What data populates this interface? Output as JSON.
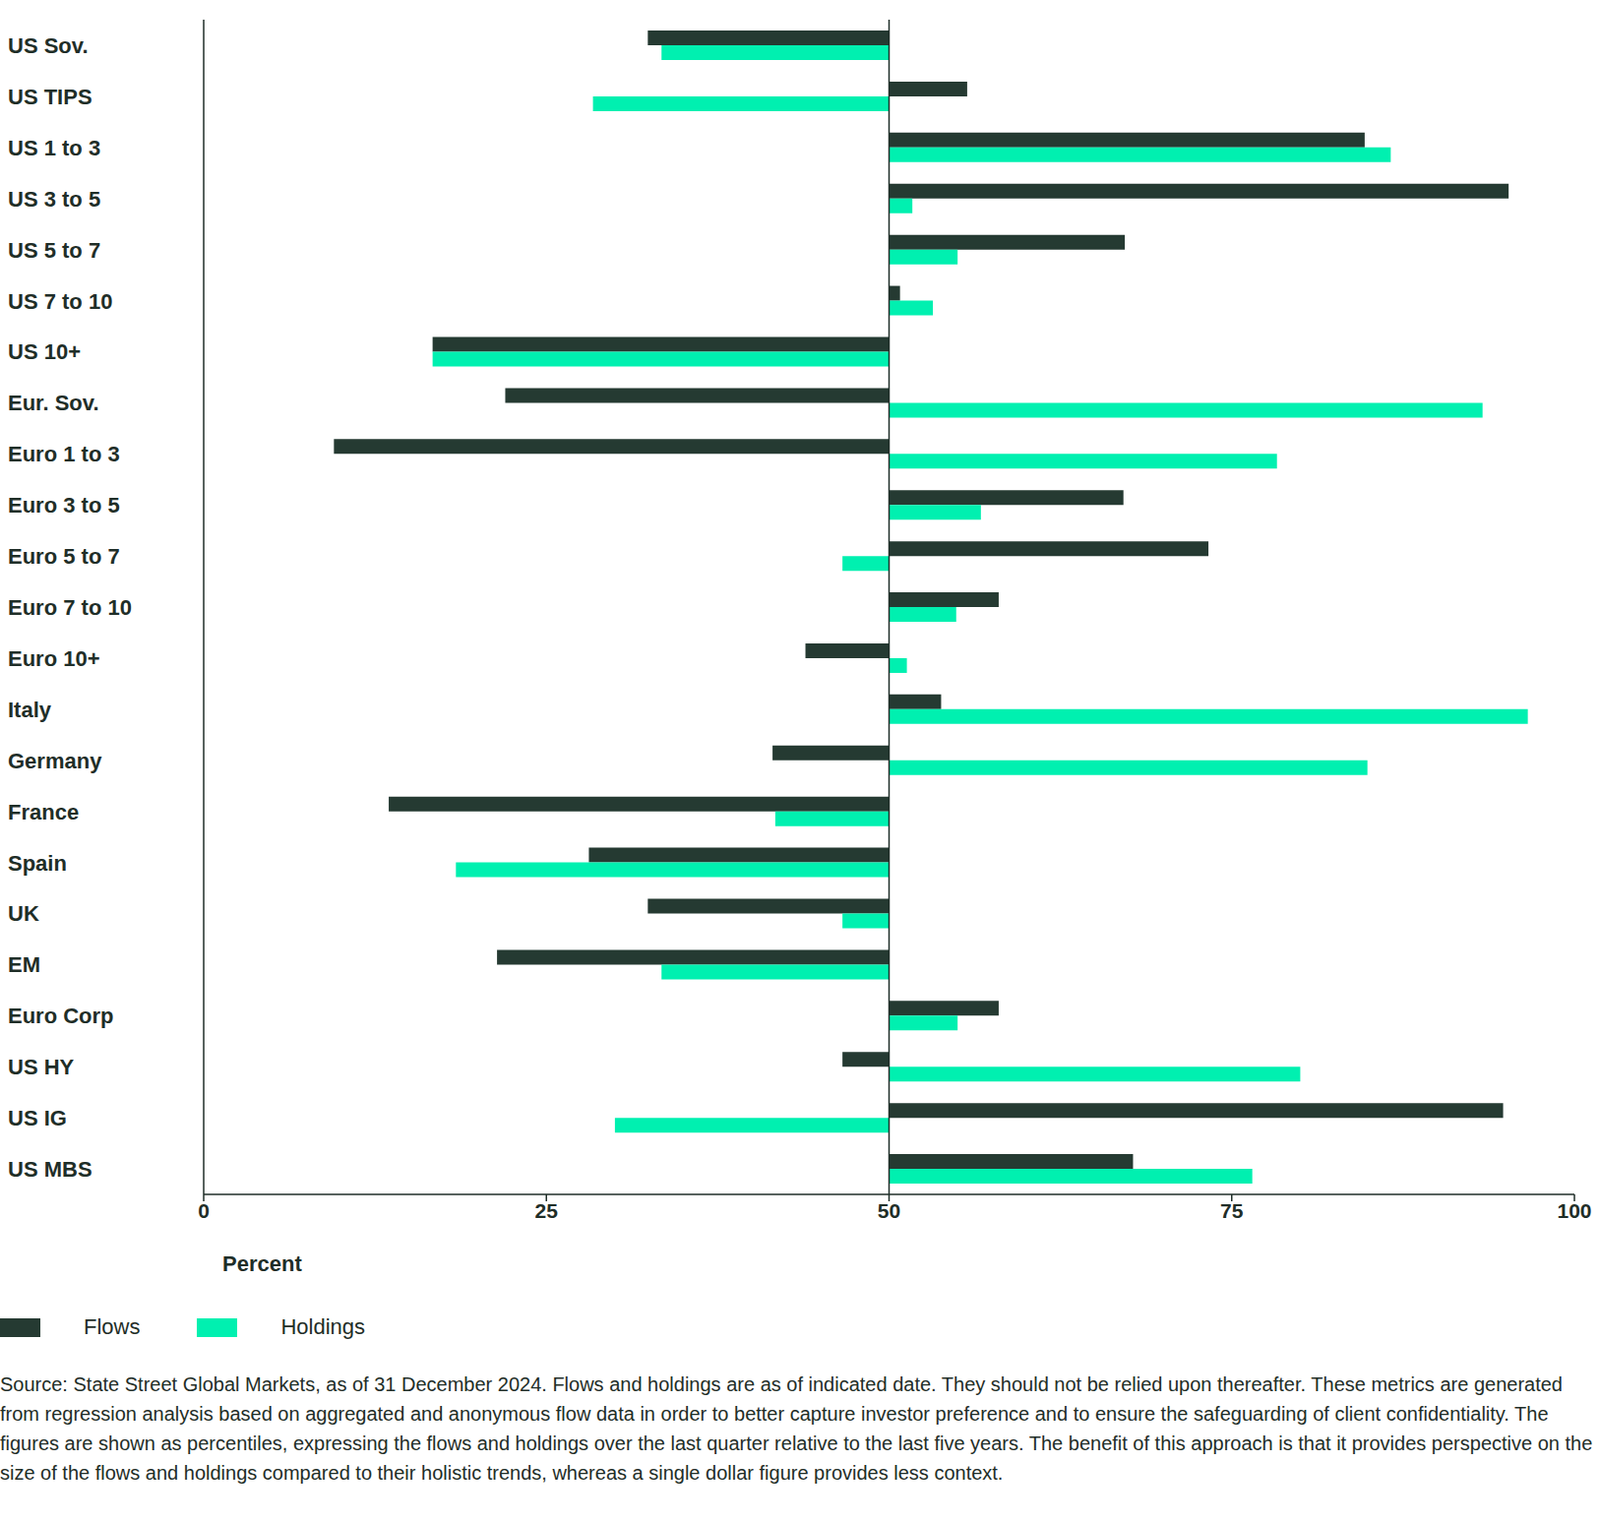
{
  "chart_data": {
    "type": "bar",
    "orientation": "horizontal",
    "x_label": "Percent",
    "xlim": [
      0,
      100
    ],
    "xticks": [
      0,
      25,
      50,
      75,
      100
    ],
    "grid": false,
    "legend": "bottom left",
    "categories": [
      "US Sov.",
      "US TIPS",
      "US 1 to 3",
      "US 3 to 5",
      "US 5 to 7",
      "US 7 to 10",
      "US 10+",
      "Eur. Sov.",
      "Euro 1 to 3",
      "Euro 3 to 5",
      "Euro 5 to 7",
      "Euro 7 to 10",
      "Euro 10+",
      "Italy",
      "Germany",
      "France",
      "Spain",
      "UK",
      "EM",
      "Euro Corp",
      "US HY",
      "US IG",
      "US MBS"
    ],
    "series": [
      {
        "name": "Flows",
        "color": "#253a32",
        "values": [
          32.4,
          55.7,
          84.7,
          95.2,
          67.2,
          50.8,
          16.7,
          22.0,
          9.5,
          67.1,
          73.3,
          58.0,
          43.9,
          53.8,
          41.5,
          13.5,
          28.1,
          32.4,
          21.4,
          58.0,
          46.6,
          94.8,
          67.8
        ]
      },
      {
        "name": "Holdings",
        "color": "#00f0b0",
        "values": [
          33.4,
          28.4,
          86.6,
          51.7,
          55.0,
          53.2,
          16.7,
          93.3,
          78.3,
          56.7,
          46.6,
          54.9,
          51.3,
          96.6,
          84.9,
          41.7,
          18.4,
          46.6,
          33.4,
          55.0,
          80.0,
          30.0,
          76.5
        ]
      }
    ],
    "annotations": [
      "Source: State Street Global Markets, as of 31 December 2024. Flows and holdings are as of indicated date. They should not be relied upon thereafter. These metrics are generated from regression analysis based on aggregated and anonymous flow data in order to better capture investor preference and to ensure the safeguarding of client confidentiality. The figures are shown as percentiles, expressing the flows and holdings over the last quarter relative to the last five years. The benefit of this approach is that it provides perspective on the size of the flows and holdings compared to their holistic trends, whereas a single dollar figure provides less context."
    ]
  }
}
